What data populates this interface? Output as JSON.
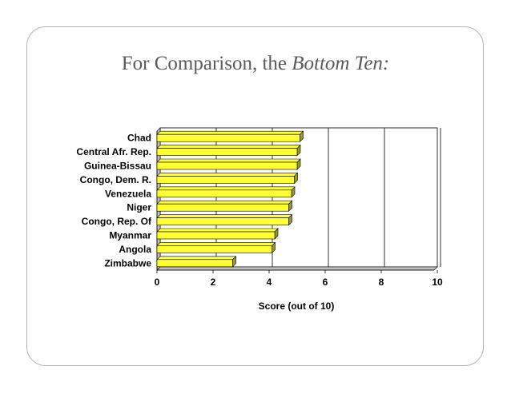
{
  "slide": {
    "title_prefix": "For Comparison, the ",
    "title_emphasis": "Bottom Ten:"
  },
  "colors": {
    "bar_fill": "#ffff33",
    "bar_side": "#99992a",
    "bar_outline": "#000000",
    "grid": "#000000",
    "frame": "#b3b3b3",
    "title_text": "#5a5a5a"
  },
  "chart_data": {
    "type": "bar",
    "orientation": "horizontal",
    "categories": [
      "Chad",
      "Central Afr. Rep.",
      "Guinea-Bissau",
      "Congo, Dem. R.",
      "Venezuela",
      "Niger",
      "Congo, Rep. Of",
      "Myanmar",
      "Angola",
      "Zimbabwe"
    ],
    "values": [
      5.1,
      5.0,
      5.0,
      4.9,
      4.8,
      4.7,
      4.7,
      4.2,
      4.1,
      2.7
    ],
    "title": "",
    "xlabel": "Score (out of 10)",
    "ylabel": "",
    "xlim": [
      0,
      10
    ],
    "x_ticks": [
      0,
      2,
      4,
      6,
      8,
      10
    ],
    "tick_labels": [
      "0",
      "2",
      "4",
      "6",
      "8",
      "10"
    ],
    "grid": true,
    "legend": "none",
    "style": "3d"
  }
}
